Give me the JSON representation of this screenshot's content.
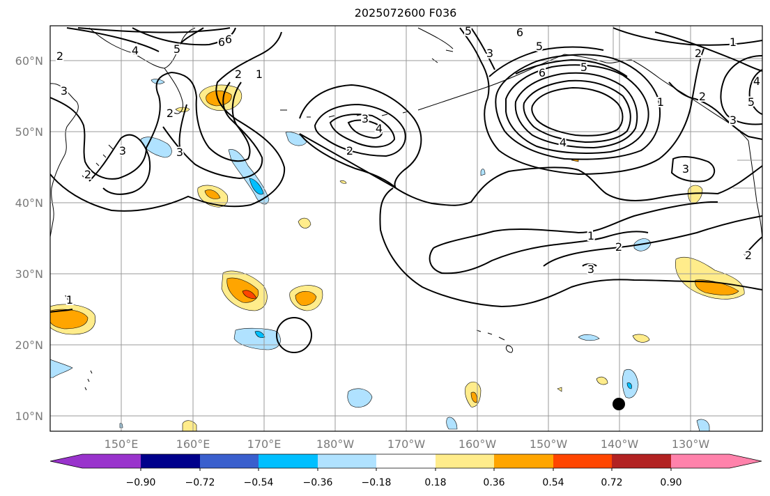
{
  "title": "2025072600 F036",
  "map": {
    "lat_labels": [
      "60°N",
      "50°N",
      "40°N",
      "30°N",
      "20°N",
      "10°N"
    ],
    "lon_labels": [
      "150°E",
      "160°E",
      "170°E",
      "180°W",
      "170°W",
      "160°W",
      "150°W",
      "140°W",
      "130°W"
    ]
  },
  "contour_labels": [
    "6",
    "4",
    "5",
    "6",
    "2",
    "1",
    "3",
    "2",
    "3",
    "3",
    "2",
    "3",
    "4",
    "2",
    "5",
    "6",
    "5",
    "6",
    "5",
    "4",
    "1",
    "2",
    "1",
    "2",
    "3",
    "4",
    "5",
    "3",
    "1",
    "2",
    "3",
    "1",
    "2",
    "3",
    "2"
  ],
  "colorbar": {
    "ticks": [
      "−0.90",
      "−0.72",
      "−0.54",
      "−0.36",
      "−0.18",
      "0.18",
      "0.36",
      "0.54",
      "0.72",
      "0.90"
    ],
    "colors": [
      "#9933cc",
      "#00008b",
      "#3a5fcd",
      "#00bfff",
      "#b0e2ff",
      "#ffffff",
      "#ffec8b",
      "#ffa500",
      "#ff4500",
      "#b22222",
      "#ff82ab"
    ]
  }
}
